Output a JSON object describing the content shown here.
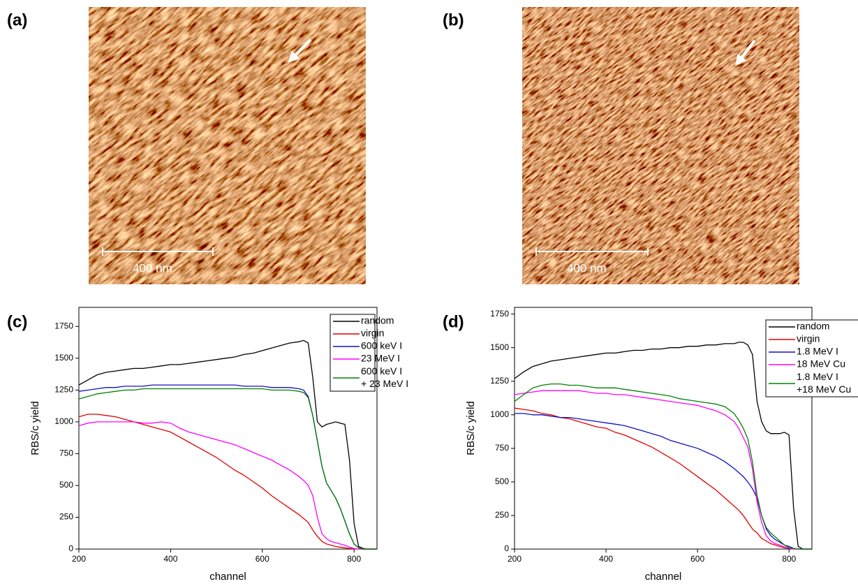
{
  "images": [
    {
      "label": "(a)",
      "scale_bar": "400 nm"
    },
    {
      "label": "(b)",
      "scale_bar": "400 nm"
    }
  ],
  "chart_data": [
    {
      "type": "line",
      "label": "(c)",
      "xlabel": "channel",
      "ylabel": "RBS/c yield",
      "xlim": [
        200,
        850
      ],
      "ylim": [
        0,
        1900
      ],
      "xticks": [
        200,
        400,
        600,
        800
      ],
      "yticks": [
        0,
        250,
        500,
        750,
        1000,
        1250,
        1500,
        1750
      ],
      "legend": "upper right",
      "x": [
        200,
        220,
        240,
        260,
        280,
        300,
        320,
        340,
        360,
        380,
        400,
        420,
        440,
        460,
        480,
        500,
        520,
        540,
        560,
        580,
        600,
        620,
        640,
        660,
        680,
        690,
        700,
        710,
        720,
        730,
        740,
        750,
        760,
        770,
        780,
        790,
        800,
        810,
        820,
        830,
        840,
        850
      ],
      "series": [
        {
          "name": "random",
          "color": "#000000",
          "values": [
            1290,
            1330,
            1370,
            1390,
            1400,
            1410,
            1420,
            1420,
            1430,
            1440,
            1450,
            1450,
            1460,
            1470,
            1480,
            1490,
            1500,
            1510,
            1530,
            1540,
            1560,
            1580,
            1600,
            1620,
            1630,
            1640,
            1620,
            1350,
            1000,
            960,
            980,
            990,
            1000,
            990,
            980,
            700,
            200,
            20,
            5,
            0,
            0,
            0
          ]
        },
        {
          "name": "virgin",
          "color": "#e00000",
          "values": [
            1040,
            1060,
            1060,
            1050,
            1040,
            1020,
            1000,
            980,
            960,
            940,
            920,
            880,
            840,
            800,
            760,
            720,
            670,
            620,
            580,
            530,
            480,
            420,
            370,
            320,
            270,
            240,
            210,
            150,
            100,
            60,
            40,
            30,
            20,
            15,
            10,
            5,
            3,
            0,
            0,
            0,
            0,
            0
          ]
        },
        {
          "name": "600 keV I",
          "color": "#1010c0",
          "values": [
            1240,
            1250,
            1260,
            1270,
            1270,
            1280,
            1280,
            1280,
            1290,
            1290,
            1290,
            1290,
            1290,
            1290,
            1290,
            1290,
            1290,
            1290,
            1280,
            1280,
            1280,
            1270,
            1270,
            1270,
            1260,
            1250,
            1200,
            1050,
            850,
            650,
            520,
            460,
            400,
            320,
            220,
            120,
            40,
            10,
            0,
            0,
            0,
            0
          ]
        },
        {
          "name": "23 MeV I",
          "color": "#ff00ff",
          "values": [
            970,
            990,
            1000,
            1000,
            1000,
            1000,
            1000,
            990,
            990,
            1000,
            990,
            950,
            920,
            900,
            880,
            860,
            840,
            820,
            790,
            760,
            730,
            700,
            660,
            620,
            570,
            540,
            500,
            420,
            250,
            120,
            80,
            60,
            50,
            40,
            30,
            15,
            5,
            0,
            0,
            0,
            0,
            0
          ]
        },
        {
          "name": "600 keV I\n+ 23 MeV I",
          "color": "#008000",
          "values": [
            1180,
            1200,
            1220,
            1230,
            1240,
            1250,
            1250,
            1260,
            1260,
            1260,
            1260,
            1260,
            1260,
            1260,
            1260,
            1260,
            1260,
            1260,
            1260,
            1260,
            1260,
            1250,
            1250,
            1250,
            1240,
            1230,
            1190,
            1050,
            850,
            650,
            520,
            460,
            400,
            320,
            220,
            120,
            40,
            10,
            0,
            0,
            0,
            0
          ]
        }
      ]
    },
    {
      "type": "line",
      "label": "(d)",
      "xlabel": "channel",
      "ylabel": "RBS/c yield",
      "xlim": [
        200,
        850
      ],
      "ylim": [
        0,
        1800
      ],
      "xticks": [
        200,
        400,
        600,
        800
      ],
      "yticks": [
        0,
        250,
        500,
        750,
        1000,
        1250,
        1500,
        1750
      ],
      "legend": "upper right",
      "x": [
        200,
        220,
        240,
        260,
        280,
        300,
        320,
        340,
        360,
        380,
        400,
        420,
        440,
        460,
        480,
        500,
        520,
        540,
        560,
        580,
        600,
        620,
        640,
        660,
        680,
        690,
        700,
        710,
        720,
        730,
        740,
        750,
        760,
        770,
        780,
        790,
        800,
        810,
        820,
        830,
        840,
        850
      ],
      "series": [
        {
          "name": "random",
          "color": "#000000",
          "values": [
            1270,
            1320,
            1360,
            1380,
            1400,
            1410,
            1420,
            1430,
            1440,
            1450,
            1460,
            1460,
            1470,
            1480,
            1480,
            1490,
            1490,
            1500,
            1500,
            1510,
            1510,
            1520,
            1520,
            1530,
            1530,
            1540,
            1540,
            1520,
            1450,
            1100,
            950,
            880,
            860,
            860,
            860,
            870,
            850,
            300,
            20,
            0,
            0,
            0
          ]
        },
        {
          "name": "virgin",
          "color": "#e00000",
          "values": [
            1050,
            1040,
            1030,
            1010,
            1000,
            980,
            970,
            950,
            930,
            910,
            900,
            870,
            850,
            820,
            790,
            760,
            720,
            680,
            640,
            590,
            540,
            490,
            440,
            380,
            320,
            290,
            250,
            200,
            150,
            120,
            80,
            60,
            40,
            30,
            20,
            10,
            5,
            0,
            0,
            0,
            0,
            0
          ]
        },
        {
          "name": "1.8 MeV I",
          "color": "#1010c0",
          "values": [
            1010,
            1010,
            1000,
            1000,
            990,
            980,
            980,
            970,
            960,
            950,
            940,
            930,
            920,
            900,
            880,
            860,
            840,
            810,
            790,
            770,
            750,
            720,
            690,
            650,
            600,
            570,
            540,
            500,
            450,
            380,
            250,
            150,
            100,
            70,
            50,
            30,
            20,
            5,
            0,
            0,
            0,
            0
          ]
        },
        {
          "name": "18 MeV Cu",
          "color": "#ff00ff",
          "values": [
            1150,
            1160,
            1170,
            1180,
            1180,
            1180,
            1180,
            1180,
            1170,
            1160,
            1160,
            1150,
            1150,
            1140,
            1130,
            1120,
            1110,
            1100,
            1090,
            1080,
            1070,
            1050,
            1030,
            1000,
            950,
            900,
            830,
            760,
            600,
            350,
            200,
            100,
            60,
            40,
            30,
            15,
            5,
            0,
            0,
            0,
            0,
            0
          ]
        },
        {
          "name": "1.8 MeV I\n+18 MeV Cu",
          "color": "#008000",
          "values": [
            1100,
            1150,
            1200,
            1220,
            1230,
            1230,
            1220,
            1220,
            1210,
            1200,
            1200,
            1200,
            1190,
            1180,
            1170,
            1160,
            1150,
            1140,
            1120,
            1110,
            1100,
            1090,
            1080,
            1060,
            1010,
            960,
            900,
            820,
            650,
            400,
            250,
            160,
            120,
            90,
            60,
            30,
            10,
            5,
            0,
            0,
            0,
            0
          ]
        }
      ]
    }
  ]
}
